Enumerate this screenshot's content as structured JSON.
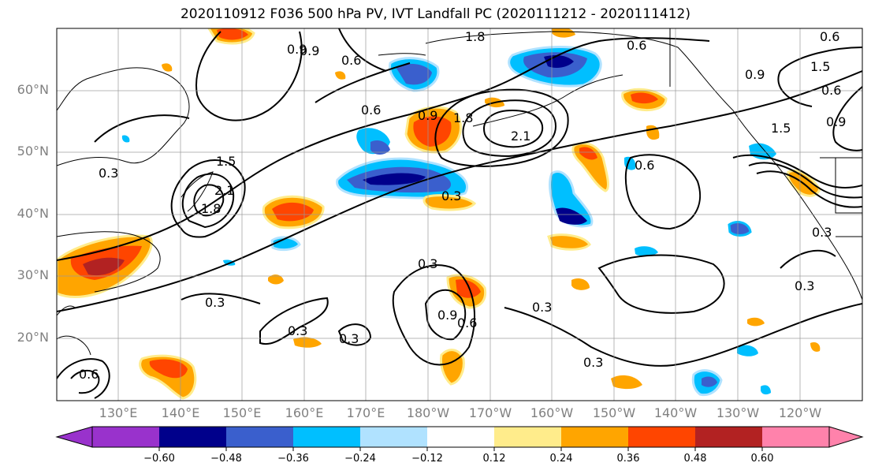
{
  "title": "2020110912 F036 500 hPa PV, IVT Landfall PC (2020111212 - 2020111412)",
  "lat_labels": [
    "60°N",
    "50°N",
    "40°N",
    "30°N",
    "20°N"
  ],
  "lon_labels": [
    "130°E",
    "140°E",
    "150°E",
    "160°E",
    "170°E",
    "180°W",
    "170°W",
    "160°W",
    "150°W",
    "140°W",
    "130°W",
    "120°W"
  ],
  "colorbar": {
    "ticks": [
      "−0.60",
      "−0.48",
      "−0.36",
      "−0.24",
      "−0.12",
      "0.12",
      "0.24",
      "0.36",
      "0.48",
      "0.60"
    ],
    "colors": [
      "#9932cc",
      "#00008b",
      "#3a5fcd",
      "#00bfff",
      "#b0e2ff",
      "#ffffff",
      "#ffec8b",
      "#ffa500",
      "#ff4500",
      "#b22222",
      "#ff82ab"
    ]
  },
  "contour_labels": [
    "0.6",
    "1.8",
    "0.6",
    "0.9",
    "0.6",
    "0.9",
    "1.8",
    "2.1",
    "0.3",
    "1.5",
    "1.8",
    "2.1",
    "0.3",
    "0.3",
    "0.3",
    "0.6",
    "0.9",
    "0.3",
    "0.3",
    "0.3",
    "0.3",
    "0.6",
    "0.9",
    "0.6",
    "0.6",
    "1.5",
    "0.9",
    "1.5",
    "0.9",
    "0.6",
    "0.3",
    "0.3"
  ]
}
